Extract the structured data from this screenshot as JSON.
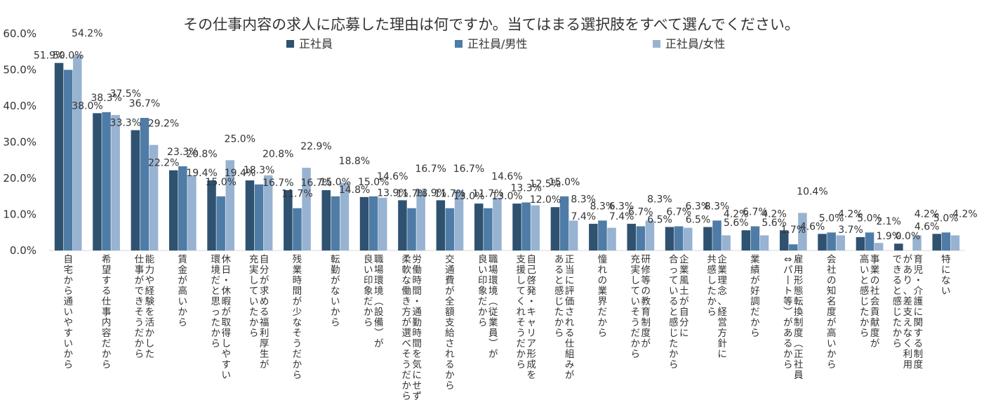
{
  "chart_data": {
    "type": "bar",
    "title": "その仕事内容の求人に応募した理由は何ですか。当てはまる選択肢をすべて選んでください。",
    "xlabel": "",
    "ylabel": "",
    "ylim": [
      0,
      60
    ],
    "yticks": [
      "0.0%",
      "10.0%",
      "20.0%",
      "30.0%",
      "40.0%",
      "50.0%",
      "60.0%"
    ],
    "grid": false,
    "legend_position": "top",
    "categories": [
      "自宅から通いやすいから",
      "希望する仕事内容だから",
      "能力や経験を活かした仕事ができそうだから",
      "賃金が高いから",
      "休日・休暇が取得しやすい環境だと思ったから",
      "自分が求める福利厚生が充実していたから",
      "残業時間が少なそうだから",
      "転勤がないから",
      "職場環境（設備）が良い印象だから",
      "労働時間・通勤時間を気にせず柔軟な働き方が選べそうだから",
      "交通費が全額支給されるから",
      "職場環境（従業員）が良い印象だから",
      "自己啓発・キャリア形成を支援してくれそうだから",
      "正当に評価される仕組みがあると感じたから",
      "憧れの業界だから",
      "研修等の教育制度が充実していそうだから",
      "企業風土が自分に合っていると感じたから",
      "企業理念、経営方針に共感したから",
      "業績が好調だから",
      "雇用形態転換制度（正社員⇔パート等）があるから",
      "会社の知名度が高いから",
      "事業の社会貢献度が高いと感じたから",
      "育児・介護に関する制度があり、差支えなく利用できると感じたから",
      "特にない"
    ],
    "category_lines": [
      [
        "自宅から通いやすいから"
      ],
      [
        "希望する仕事内容だから"
      ],
      [
        "能力や経験を活かした",
        "仕事ができそうだから"
      ],
      [
        "賃金が高いから"
      ],
      [
        "休日・休暇が取得しやすい",
        "環境だと思ったから"
      ],
      [
        "自分が求める福利厚生が",
        "充実していたから"
      ],
      [
        "残業時間が少なそうだから"
      ],
      [
        "転勤がないから"
      ],
      [
        "職場環境（設備）が",
        "良い印象だから"
      ],
      [
        "労働時間・通勤時間を気にせず",
        "柔軟な働き方が選べそうだから"
      ],
      [
        "交通費が全額支給されるから"
      ],
      [
        "職場環境（従業員）が",
        "良い印象だから"
      ],
      [
        "自己啓発・キャリア形成を",
        "支援してくれそうだから"
      ],
      [
        "正当に評価される仕組みが",
        "あると感じたから"
      ],
      [
        "憧れの業界だから"
      ],
      [
        "研修等の教育制度が",
        "充実していそうだから"
      ],
      [
        "企業風土が自分に",
        "合っていると感じたから"
      ],
      [
        "企業理念、経営方針に",
        "共感したから"
      ],
      [
        "業績が好調だから"
      ],
      [
        "雇用形態転換制度（正社員",
        "⇔パート等）があるから"
      ],
      [
        "会社の知名度が高いから"
      ],
      [
        "事業の社会貢献度が",
        "高いと感じたから"
      ],
      [
        "育児・介護に関する制度",
        "があり、差支えなく利用",
        "できると感じたから"
      ],
      [
        "特にない"
      ]
    ],
    "series": [
      {
        "name": "正社員",
        "color": "#2f5270",
        "values": [
          51.9,
          38.0,
          33.3,
          22.2,
          19.4,
          19.4,
          16.7,
          16.7,
          14.8,
          13.9,
          13.9,
          13.0,
          13.0,
          12.0,
          7.4,
          7.4,
          6.5,
          6.5,
          5.6,
          5.6,
          4.6,
          3.7,
          1.9,
          4.6
        ],
        "labels": [
          "51.9%",
          "38.0%",
          "33.3%",
          "22.2%",
          "19.4%",
          "19.4%",
          "16.7%",
          "16.7%",
          "14.8%",
          "13.9%",
          "13.9%",
          "13.0%",
          "13.0%",
          "12.0%",
          "7.4%",
          "7.4%",
          "6.5%",
          "6.5%",
          "5.6%",
          "5.6%",
          "4.6%",
          "3.7%",
          "1.9%",
          "4.6%"
        ]
      },
      {
        "name": "正社員/男性",
        "color": "#4e7ca6",
        "values": [
          50.0,
          38.3,
          36.7,
          23.3,
          15.0,
          18.3,
          11.7,
          15.0,
          15.0,
          11.7,
          11.7,
          11.7,
          13.3,
          15.0,
          8.3,
          6.7,
          6.7,
          8.3,
          6.7,
          1.7,
          5.0,
          5.0,
          0.0,
          5.0
        ],
        "labels": [
          "50.0%",
          "38.3%",
          "36.7%",
          "23.3%",
          "15.0%",
          "18.3%",
          "11.7%",
          "15.0%",
          "15.0%",
          "11.7%",
          "11.7%",
          "11.7%",
          "13.3%",
          "15.0%",
          "8.3%",
          "6.7%",
          "6.7%",
          "8.3%",
          "6.7%",
          "1.7%",
          "5.0%",
          "5.0%",
          "0.0%",
          "5.0%"
        ]
      },
      {
        "name": "正社員/女性",
        "color": "#98b3d1",
        "values": [
          54.2,
          37.5,
          29.2,
          20.8,
          25.0,
          20.8,
          22.9,
          18.8,
          14.6,
          16.7,
          16.7,
          14.6,
          12.5,
          8.3,
          6.3,
          8.3,
          6.3,
          4.2,
          4.2,
          10.4,
          4.2,
          2.1,
          4.2,
          4.2
        ],
        "labels": [
          "54.2%",
          "37.5%",
          "29.2%",
          "20.8%",
          "25.0%",
          "20.8%",
          "22.9%",
          "18.8%",
          "14.6%",
          "16.7%",
          "16.7%",
          "14.6%",
          "12.5%",
          "8.3%",
          "6.3%",
          "8.3%",
          "6.3%",
          "4.2%",
          "4.2%",
          "10.4%",
          "4.2%",
          "2.1%",
          "4.2%",
          "4.2%"
        ]
      }
    ]
  }
}
